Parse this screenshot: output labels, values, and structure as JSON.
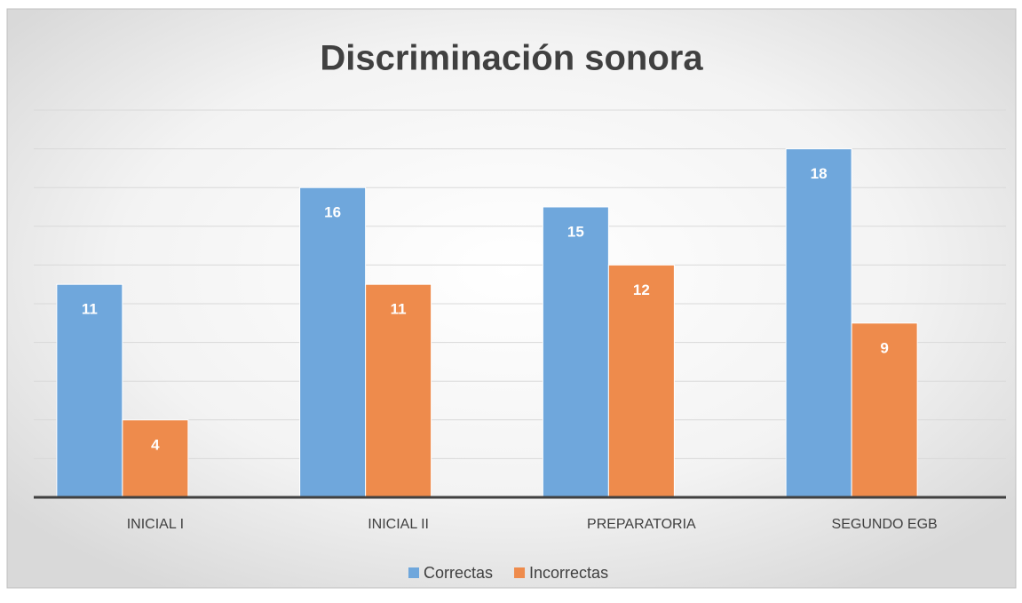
{
  "chart_data": {
    "type": "bar",
    "title": "Discriminación sonora",
    "categories": [
      "INICIAL I",
      "INICIAL II",
      "PREPARATORIA",
      "SEGUNDO EGB"
    ],
    "series": [
      {
        "name": "Correctas",
        "color": "#6fa7dc",
        "values": [
          11,
          16,
          15,
          18
        ]
      },
      {
        "name": "Incorrectas",
        "color": "#ee8b4c",
        "values": [
          4,
          11,
          12,
          9
        ]
      }
    ],
    "ylim": [
      0,
      20
    ],
    "yticks": [
      0,
      2,
      4,
      6,
      8,
      10,
      12,
      14,
      16,
      18,
      20
    ],
    "grid": true,
    "legend": "bottom"
  }
}
